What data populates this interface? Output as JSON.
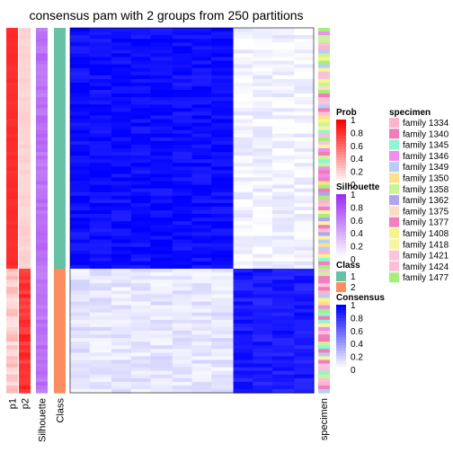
{
  "chart_data": {
    "type": "heatmap",
    "title": "consensus pam with 2 groups from 250 partitions",
    "annotation_columns": [
      "p1",
      "p2",
      "Silhouette",
      "Class"
    ],
    "right_annotation_label": "specimen",
    "groups": [
      {
        "class": 1,
        "rows": 66,
        "p1": [
          0.85,
          0.8
        ],
        "p2": [
          0.15,
          0.2
        ],
        "silhouette": [
          0.6,
          0.75
        ],
        "within_consensus": 0.95,
        "cross_consensus": 0.05
      },
      {
        "class": 2,
        "rows": 34,
        "p1": [
          0.1,
          0.3
        ],
        "p2": [
          0.7,
          0.9
        ],
        "silhouette": [
          0.6,
          0.75
        ],
        "within_consensus": 0.9,
        "cross_consensus": 0.1
      }
    ],
    "colors": {
      "prob_low": "#ffffff",
      "prob_high": "#ff0000",
      "silhouette_low": "#ffffff",
      "silhouette_high": "#9a2ff0",
      "consensus_low": "#ffffff",
      "consensus_high": "#0000ff",
      "class_1": "#66c2a5",
      "class_2": "#fc8d62"
    },
    "legends": {
      "prob": {
        "title": "Prob",
        "ticks": [
          "1",
          "0.8",
          "0.6",
          "0.4",
          "0.2",
          "0"
        ]
      },
      "silhouette": {
        "title": "Silhouette",
        "ticks": [
          "1",
          "0.8",
          "0.6",
          "0.4",
          "0.2",
          "0"
        ]
      },
      "class": {
        "title": "Class",
        "items": [
          {
            "label": "1",
            "color": "#66c2a5"
          },
          {
            "label": "2",
            "color": "#fc8d62"
          }
        ]
      },
      "consensus": {
        "title": "Consensus",
        "ticks": [
          "1",
          "0.8",
          "0.6",
          "0.4",
          "0.2",
          "0"
        ]
      },
      "specimen": {
        "title": "specimen",
        "items": [
          {
            "label": "family 1334",
            "color": "#fbb4c9"
          },
          {
            "label": "family 1340",
            "color": "#f27bb8"
          },
          {
            "label": "family 1345",
            "color": "#8ff5d2"
          },
          {
            "label": "family 1346",
            "color": "#f08ef0"
          },
          {
            "label": "family 1349",
            "color": "#b8cdf5"
          },
          {
            "label": "family 1350",
            "color": "#fde08a"
          },
          {
            "label": "family 1358",
            "color": "#c9f59a"
          },
          {
            "label": "family 1362",
            "color": "#b3a4f0"
          },
          {
            "label": "family 1375",
            "color": "#fcdcc4"
          },
          {
            "label": "family 1377",
            "color": "#f27fc0"
          },
          {
            "label": "family 1408",
            "color": "#f5f58a"
          },
          {
            "label": "family 1418",
            "color": "#f8f5a0"
          },
          {
            "label": "family 1421",
            "color": "#fbc4dc"
          },
          {
            "label": "family 1424",
            "color": "#f9c0d8"
          },
          {
            "label": "family 1477",
            "color": "#a2f07a"
          }
        ]
      }
    }
  }
}
